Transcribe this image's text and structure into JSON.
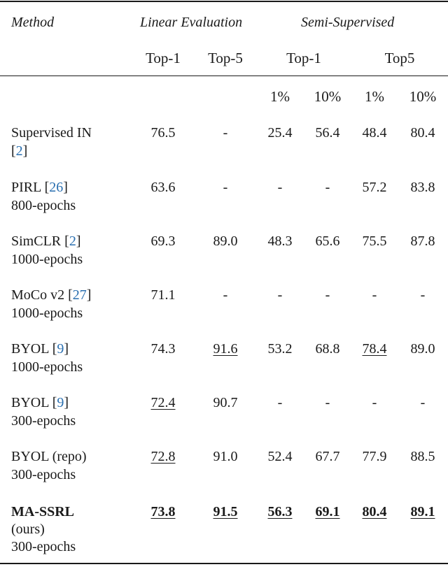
{
  "header": {
    "method": "Method",
    "linear_eval": "Linear Evaluation",
    "semi_supervised": "Semi-Supervised",
    "linear_top1": "Top-1",
    "linear_top5": "Top-5",
    "semi_top1": "Top-1",
    "semi_top5": "Top5",
    "pct_1a": "1%",
    "pct_10a": "10%",
    "pct_1b": "1%",
    "pct_10b": "10%"
  },
  "rows": [
    {
      "name": "Supervised IN ",
      "cite_pre": "[",
      "cite": "2",
      "cite_post": "]",
      "cite_wrap": true,
      "name2": "",
      "values": [
        "76.5",
        "-",
        "25.4",
        "56.4",
        "48.4",
        "80.4"
      ]
    },
    {
      "name": "PIRL ",
      "cite_pre": "[",
      "cite": "26",
      "cite_post": "]",
      "cite_wrap": false,
      "name2": "800-epochs",
      "values": [
        "63.6",
        "-",
        "-",
        "-",
        "57.2",
        "83.8"
      ]
    },
    {
      "name": "SimCLR ",
      "cite_pre": "[",
      "cite": "2",
      "cite_post": "]",
      "cite_wrap": false,
      "name2": "1000-epochs",
      "values": [
        "69.3",
        "89.0",
        "48.3",
        "65.6",
        "75.5",
        "87.8"
      ]
    },
    {
      "name": "MoCo v2 ",
      "cite_pre": "[",
      "cite": "27",
      "cite_post": "]",
      "cite_wrap": false,
      "name2": "1000-epochs",
      "values": [
        "71.1",
        "-",
        "-",
        "-",
        "-",
        "-"
      ]
    },
    {
      "name": "BYOL ",
      "cite_pre": "[",
      "cite": "9",
      "cite_post": "]",
      "cite_wrap": false,
      "name2": "1000-epochs",
      "values": [
        "74.3",
        "91.6",
        "53.2",
        "68.8",
        "78.4",
        "89.0"
      ]
    },
    {
      "name": "BYOL ",
      "cite_pre": "[",
      "cite": "9",
      "cite_post": "]",
      "cite_wrap": false,
      "name2": "300-epochs",
      "values": [
        "72.4",
        "90.7",
        "-",
        "-",
        "-",
        "-"
      ]
    },
    {
      "name": "BYOL (repo)",
      "cite_pre": "",
      "cite": "",
      "cite_post": "",
      "cite_wrap": false,
      "name2": "300-epochs",
      "values": [
        "72.8",
        "91.0",
        "52.4",
        "67.7",
        "77.9",
        "88.5"
      ]
    }
  ],
  "ours": {
    "name": "MA-SSRL",
    "name2": "(ours)",
    "name3": "300-epochs",
    "values": [
      "73.8",
      "91.5",
      "56.3",
      "69.1",
      "80.4",
      "89.1"
    ]
  }
}
